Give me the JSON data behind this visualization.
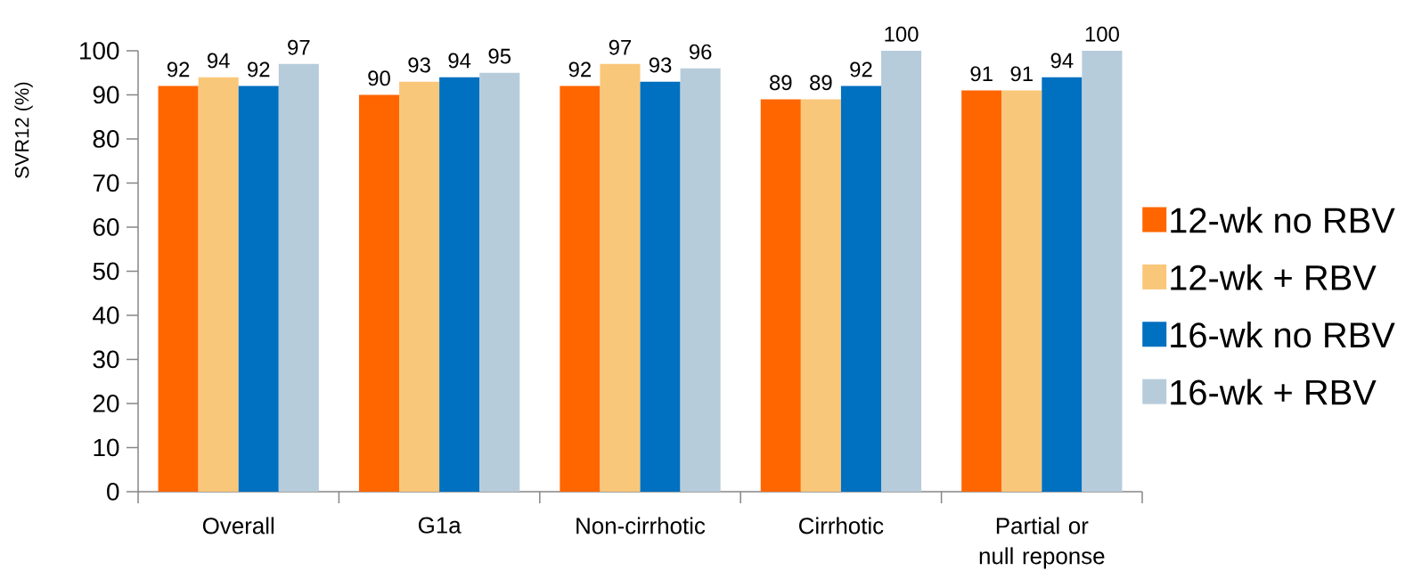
{
  "chart_data": {
    "type": "bar",
    "ylabel": "SVR12 (%)",
    "categories": [
      "Overall",
      "G1a",
      "Non-cirrhotic",
      "Cirrhotic",
      "Partial or null reponse"
    ],
    "series": [
      {
        "name": "12-wk no RBV",
        "color": "#ff6600",
        "values": [
          92,
          90,
          92,
          89,
          91
        ]
      },
      {
        "name": "12-wk + RBV",
        "color": "#f9c77a",
        "values": [
          94,
          93,
          97,
          89,
          91
        ]
      },
      {
        "name": "16-wk no RBV",
        "color": "#0070c0",
        "values": [
          92,
          94,
          93,
          92,
          94
        ]
      },
      {
        "name": "16-wk + RBV",
        "color": "#b7ccda",
        "values": [
          97,
          95,
          96,
          100,
          100
        ]
      }
    ],
    "ylim": [
      0,
      100
    ],
    "yticks": [
      0,
      10,
      20,
      30,
      40,
      50,
      60,
      70,
      80,
      90,
      100
    ],
    "data_labels": true,
    "legend": "right"
  }
}
